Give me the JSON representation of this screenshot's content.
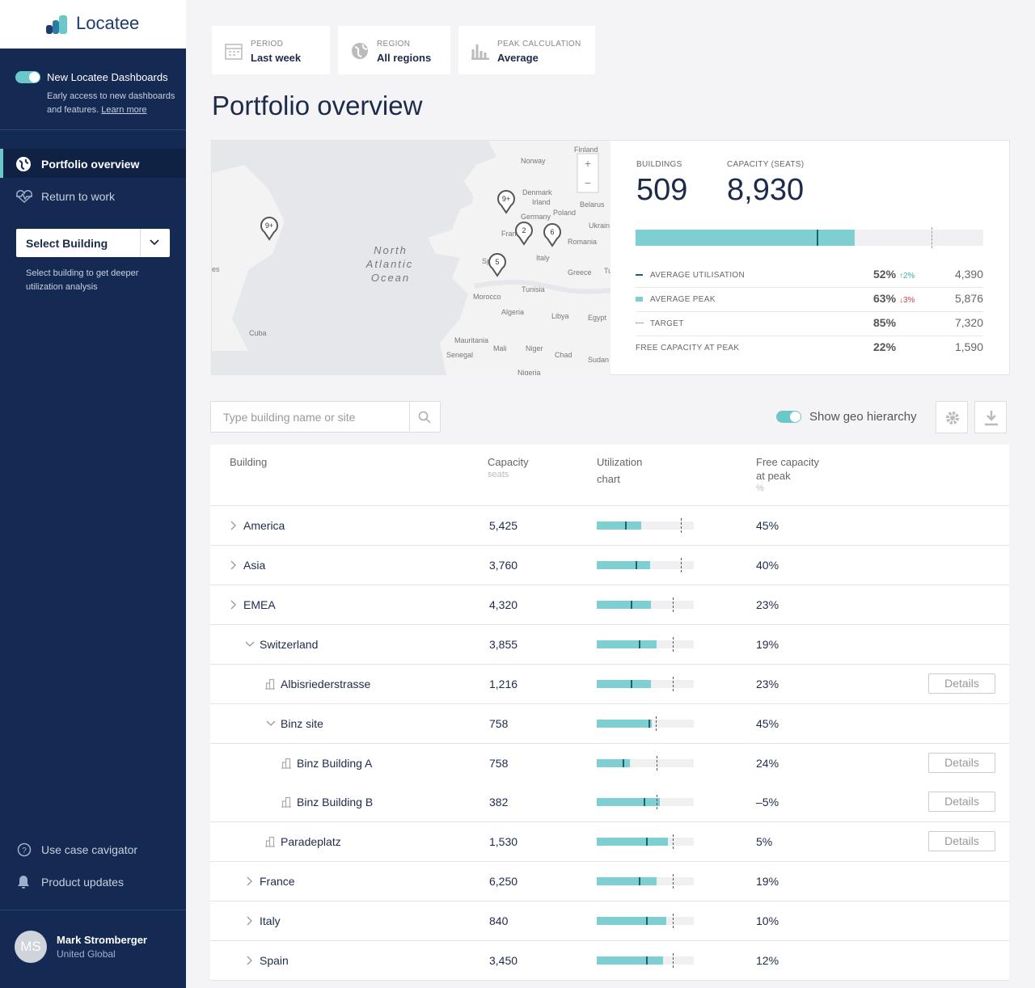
{
  "sidebar": {
    "logo": "Locatee",
    "toggle_title": "New Locatee Dashboards",
    "toggle_text": "Early access to new dashboards and features.",
    "toggle_link": "Learn more",
    "nav": [
      "Portfolio overview",
      "Return to work"
    ],
    "select": "Select Building",
    "select_hint": "Select building to get deeper utilization analysis",
    "bottom_nav": [
      "Use case cavigator",
      "Product updates"
    ],
    "user": {
      "initials": "MS",
      "name": "Mark Stromberger",
      "org": "United Global"
    }
  },
  "filters": [
    {
      "label": "PERIOD",
      "value": "Last week"
    },
    {
      "label": "REGION",
      "value": "All regions"
    },
    {
      "label": "PEAK CALCULATION",
      "value": "Average"
    }
  ],
  "title": "Portfolio overview",
  "map": {
    "labels": [
      "Finland",
      "Norway",
      "Denmark",
      "Irland",
      "Belarus",
      "Germany",
      "Poland",
      "Ukrain",
      "Fran",
      "Romania",
      "Italy",
      "Greece",
      "Tu",
      "Sp",
      "Tunisia",
      "Morocco",
      "Algeria",
      "Libya",
      "Egypt",
      "Mauritania",
      "Mali",
      "Niger",
      "Chad",
      "Sudan",
      "Senegal",
      "Nigeria",
      "Cuba",
      "es",
      "North",
      "Atlantic",
      "Ocean"
    ],
    "pins": [
      "9+",
      "9+",
      "2",
      "6",
      "5"
    ],
    "zoom": [
      "+",
      "−"
    ]
  },
  "summary": {
    "buildings_label": "BUILDINGS",
    "buildings": "509",
    "capacity_label": "CAPACITY (SEATS)",
    "capacity": "8,930",
    "rows": [
      {
        "label": "AVERAGE UTILISATION",
        "percent": 52,
        "percent_label": "52%",
        "change": "↑2%",
        "seats": "4,390"
      },
      {
        "label": "AVERAGE PEAK",
        "percent": 63,
        "percent_label": "63%",
        "change": "↓3%",
        "seats": "5,876"
      },
      {
        "label": "TARGET",
        "percent": 85,
        "percent_label": "85%",
        "seats": "7,320"
      },
      {
        "label": "FREE CAPACITY AT PEAK",
        "percent": 22,
        "percent_label": "22%",
        "seats": "1,590"
      }
    ]
  },
  "table": {
    "search_placeholder": "Type building name or site",
    "geo_toggle": "Show geo hierarchy",
    "columns": [
      [
        "Building"
      ],
      [
        "Capacity",
        "seats"
      ],
      [
        "Utilization",
        "chart"
      ],
      [
        "Free capacity",
        "at peak",
        "%"
      ]
    ],
    "rows": [
      {
        "name": "America",
        "capacity": "5,425",
        "free": "45%",
        "level": 0,
        "expander": "closed",
        "bar": {
          "avg": 29,
          "peak": 46,
          "target": 87
        }
      },
      {
        "name": "Asia",
        "capacity": "3,760",
        "free": "40%",
        "level": 0,
        "expander": "closed",
        "bar": {
          "avg": 40,
          "peak": 55,
          "target": 87
        }
      },
      {
        "name": "EMEA",
        "capacity": "4,320",
        "free": "23%",
        "level": 0,
        "expander": "closed",
        "bar": {
          "avg": 35,
          "peak": 56,
          "target": 78
        }
      },
      {
        "name": "Switzerland",
        "capacity": "3,855",
        "free": "19%",
        "level": 1,
        "expander": "open",
        "bar": {
          "avg": 43,
          "peak": 62,
          "target": 78
        }
      },
      {
        "name": "Albisriederstrasse",
        "capacity": "1,216",
        "free": "23%",
        "level": 2,
        "expander": "building",
        "details": "Details",
        "bar": {
          "avg": 35,
          "peak": 56,
          "target": 78
        }
      },
      {
        "name": "Binz site",
        "capacity": "758",
        "free": "45%",
        "level": 2,
        "expander": "open",
        "bar": {
          "avg": 53,
          "peak": 57,
          "target": 61
        }
      },
      {
        "name": "Binz Building A",
        "capacity": "758",
        "free": "24%",
        "level": 3,
        "expander": "building",
        "details": "Details",
        "bar": {
          "avg": 27,
          "peak": 34,
          "target": 62
        }
      },
      {
        "name": "Binz Building B",
        "capacity": "382",
        "free": "–5%",
        "level": 3,
        "expander": "building",
        "details": "Details",
        "bar": {
          "avg": 48,
          "peak": 65,
          "target": 62
        }
      },
      {
        "name": "Paradeplatz",
        "capacity": "1,530",
        "free": "5%",
        "level": 2,
        "expander": "building",
        "details": "Details",
        "bar": {
          "avg": 51,
          "peak": 73,
          "target": 78
        }
      },
      {
        "name": "France",
        "capacity": "6,250",
        "free": "19%",
        "level": 1,
        "expander": "closed",
        "bar": {
          "avg": 43,
          "peak": 62,
          "target": 78
        }
      },
      {
        "name": "Italy",
        "capacity": "840",
        "free": "10%",
        "level": 1,
        "expander": "closed",
        "bar": {
          "avg": 51,
          "peak": 72,
          "target": 78
        }
      },
      {
        "name": "Spain",
        "capacity": "3,450",
        "free": "12%",
        "level": 1,
        "expander": "closed",
        "bar": {
          "avg": 51,
          "peak": 68,
          "target": 78
        }
      }
    ]
  }
}
